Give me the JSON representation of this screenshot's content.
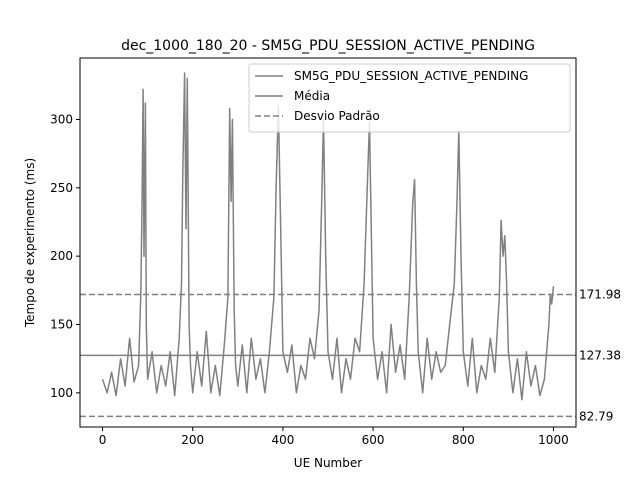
{
  "chart_data": {
    "type": "line",
    "title": "dec_1000_180_20 - SM5G_PDU_SESSION_ACTIVE_PENDING",
    "xlabel": "UE Number",
    "ylabel": "Tempo de experimento (ms)",
    "xlim": [
      -50,
      1050
    ],
    "ylim": [
      75,
      345
    ],
    "x_ticks": [
      0,
      200,
      400,
      600,
      800,
      1000
    ],
    "y_ticks": [
      100,
      150,
      200,
      250,
      300
    ],
    "grid": false,
    "legend_position": "top-right",
    "colors": {
      "series": "#808080",
      "axes": "#000000",
      "background": "#ffffff"
    },
    "series": [
      {
        "name": "SM5G_PDU_SESSION_ACTIVE_PENDING",
        "style": "solid",
        "points_x": [
          0,
          10,
          20,
          30,
          40,
          50,
          60,
          70,
          80,
          85,
          88,
          90,
          92,
          95,
          97,
          100,
          110,
          120,
          130,
          140,
          150,
          160,
          170,
          175,
          178,
          182,
          185,
          188,
          192,
          195,
          200,
          210,
          220,
          230,
          240,
          250,
          260,
          270,
          278,
          282,
          285,
          288,
          292,
          295,
          300,
          310,
          320,
          330,
          340,
          350,
          360,
          370,
          380,
          385,
          390,
          395,
          400,
          410,
          420,
          430,
          440,
          450,
          460,
          470,
          480,
          486,
          490,
          495,
          500,
          510,
          520,
          530,
          540,
          550,
          560,
          570,
          580,
          588,
          592,
          595,
          600,
          610,
          620,
          630,
          640,
          650,
          660,
          670,
          680,
          688,
          692,
          696,
          700,
          710,
          720,
          730,
          740,
          750,
          760,
          770,
          780,
          786,
          790,
          795,
          800,
          810,
          820,
          830,
          840,
          850,
          860,
          870,
          880,
          884,
          888,
          892,
          896,
          900,
          910,
          920,
          930,
          940,
          950,
          960,
          970,
          980,
          990,
          993,
          996,
          1000
        ],
        "points_y": [
          110,
          100,
          115,
          98,
          125,
          105,
          140,
          108,
          120,
          175,
          250,
          322,
          200,
          312,
          150,
          110,
          130,
          100,
          120,
          105,
          130,
          98,
          140,
          180,
          260,
          334,
          220,
          330,
          150,
          120,
          100,
          130,
          105,
          145,
          100,
          120,
          98,
          135,
          170,
          308,
          240,
          300,
          160,
          120,
          105,
          135,
          100,
          140,
          110,
          125,
          100,
          130,
          170,
          250,
          310,
          220,
          130,
          115,
          135,
          100,
          120,
          110,
          140,
          125,
          160,
          240,
          300,
          200,
          130,
          110,
          140,
          100,
          125,
          110,
          140,
          130,
          180,
          260,
          298,
          240,
          140,
          110,
          130,
          100,
          150,
          115,
          135,
          110,
          170,
          240,
          256,
          180,
          130,
          100,
          140,
          110,
          130,
          115,
          120,
          150,
          180,
          240,
          292,
          200,
          130,
          105,
          140,
          100,
          120,
          110,
          140,
          115,
          170,
          226,
          200,
          215,
          180,
          130,
          100,
          125,
          95,
          130,
          105,
          120,
          98,
          110,
          150,
          172,
          165,
          178
        ]
      },
      {
        "name": "Média",
        "style": "solid",
        "value": 127.38,
        "label": "127.38"
      },
      {
        "name": "Desvio Padrão",
        "style": "dashed",
        "values": [
          171.98,
          82.79
        ],
        "labels": [
          "171.98",
          "82.79"
        ]
      }
    ]
  }
}
